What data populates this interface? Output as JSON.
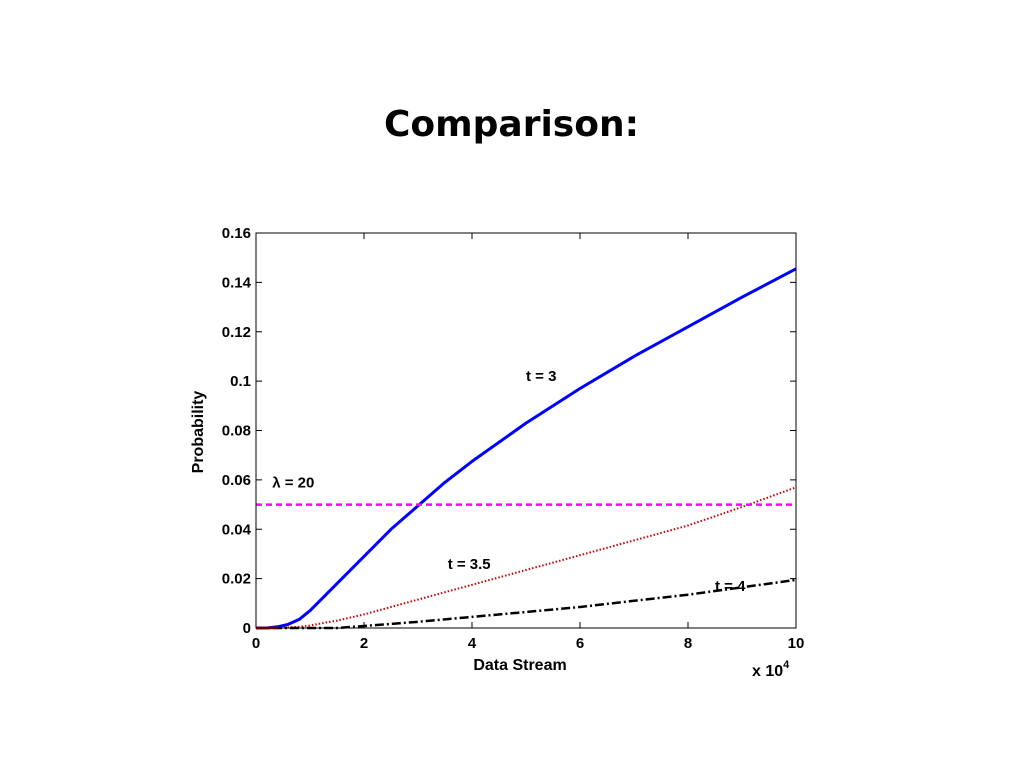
{
  "slide": {
    "title": "Comparison:"
  },
  "chart_data": {
    "type": "line",
    "title": "",
    "xlabel": "Data Stream",
    "ylabel": "Probability",
    "x_multiplier_label": "x 10",
    "x_multiplier_exponent": "4",
    "xlim": [
      0,
      10
    ],
    "ylim": [
      0,
      0.16
    ],
    "x_ticks": [
      0,
      2,
      4,
      6,
      8,
      10
    ],
    "x_tick_labels": [
      "0",
      "2",
      "4",
      "6",
      "8",
      "10"
    ],
    "y_ticks": [
      0,
      0.02,
      0.04,
      0.06,
      0.08,
      0.1,
      0.12,
      0.14,
      0.16
    ],
    "y_tick_labels": [
      "0",
      "0.02",
      "0.04",
      "0.06",
      "0.08",
      "0.1",
      "0.12",
      "0.14",
      "0.16"
    ],
    "grid": false,
    "series": [
      {
        "name": "t = 3",
        "color": "#0000ff",
        "style": "solid",
        "label_at": [
          5.0,
          0.1
        ],
        "x": [
          0,
          0.2,
          0.4,
          0.6,
          0.8,
          1,
          1.5,
          2,
          2.5,
          3,
          3.5,
          4,
          5,
          6,
          7,
          8,
          9,
          10
        ],
        "y": [
          0,
          0,
          0.0005,
          0.0015,
          0.0035,
          0.007,
          0.018,
          0.029,
          0.04,
          0.0495,
          0.059,
          0.0675,
          0.083,
          0.097,
          0.11,
          0.122,
          0.134,
          0.1455
        ]
      },
      {
        "name": "t = 3.5",
        "color": "#cc0000",
        "style": "dotted",
        "label_at": [
          3.55,
          0.024
        ],
        "x": [
          0,
          0.4,
          0.8,
          1,
          1.5,
          2,
          3,
          4,
          5,
          6,
          7,
          8,
          9,
          10
        ],
        "y": [
          0,
          0,
          0.0005,
          0.001,
          0.003,
          0.0055,
          0.0115,
          0.0175,
          0.0235,
          0.0295,
          0.0355,
          0.0415,
          0.049,
          0.057
        ]
      },
      {
        "name": "t = 4",
        "color": "#000000",
        "style": "dashdot",
        "label_at": [
          8.5,
          0.015
        ],
        "x": [
          0,
          1.5,
          2,
          3,
          4,
          5,
          6,
          7,
          8,
          9,
          10
        ],
        "y": [
          0,
          0,
          0.0008,
          0.0025,
          0.0045,
          0.0065,
          0.0085,
          0.011,
          0.0135,
          0.0165,
          0.0195
        ]
      },
      {
        "name": "λ = 20",
        "color": "#ff00ff",
        "style": "dashed",
        "label_at": [
          0.3,
          0.057
        ],
        "x": [
          0,
          10
        ],
        "y": [
          0.05,
          0.05
        ]
      }
    ]
  }
}
